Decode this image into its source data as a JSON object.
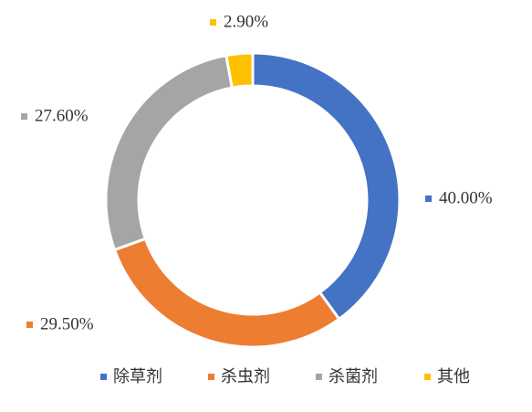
{
  "chart_data": {
    "type": "donut",
    "categories": [
      "除草剂",
      "杀虫剂",
      "杀菌剂",
      "其他"
    ],
    "values": [
      40.0,
      29.5,
      27.6,
      2.9
    ],
    "value_labels": [
      "40.00%",
      "29.50%",
      "27.60%",
      "2.90%"
    ],
    "colors": [
      "#4472c4",
      "#ed7d31",
      "#a5a5a5",
      "#ffc000"
    ],
    "legend": "bottom"
  }
}
